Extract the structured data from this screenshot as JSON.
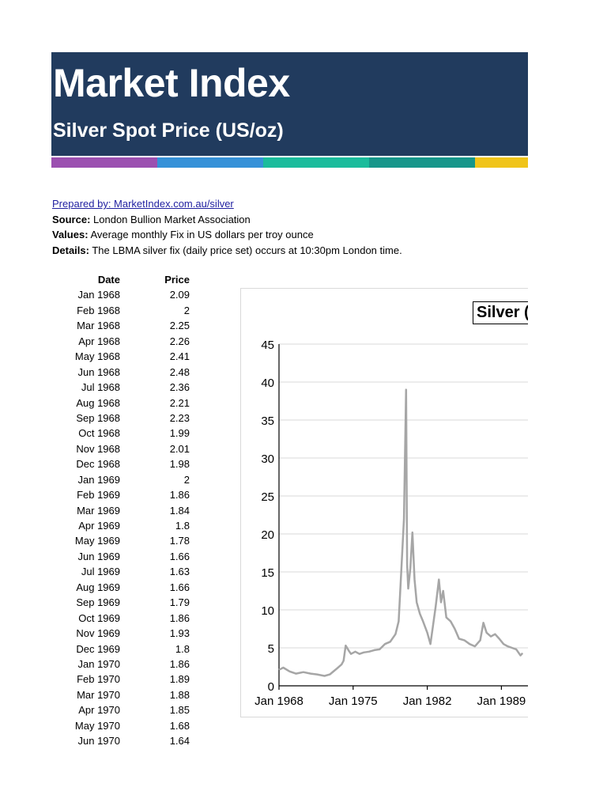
{
  "header": {
    "title": "Market Index",
    "subtitle": "Silver Spot Price (US/oz)",
    "stripe_colors": [
      "#9b4fb0",
      "#3591d8",
      "#1abc9c",
      "#16968a",
      "#f0c419"
    ]
  },
  "meta": {
    "prepared_by": "Prepared by: MarketIndex.com.au/silver",
    "source_label": "Source:",
    "source_value": "London Bullion Market Association",
    "values_label": "Values:",
    "values_value": "Average monthly Fix in US dollars per troy ounce",
    "details_label": "Details:",
    "details_value": "The LBMA silver fix (daily price set) occurs at 10:30pm London time."
  },
  "table": {
    "headers": [
      "Date",
      "Price"
    ],
    "rows": [
      [
        "Jan 1968",
        "2.09"
      ],
      [
        "Feb 1968",
        "2"
      ],
      [
        "Mar 1968",
        "2.25"
      ],
      [
        "Apr 1968",
        "2.26"
      ],
      [
        "May 1968",
        "2.41"
      ],
      [
        "Jun 1968",
        "2.48"
      ],
      [
        "Jul 1968",
        "2.36"
      ],
      [
        "Aug 1968",
        "2.21"
      ],
      [
        "Sep 1968",
        "2.23"
      ],
      [
        "Oct 1968",
        "1.99"
      ],
      [
        "Nov 1968",
        "2.01"
      ],
      [
        "Dec 1968",
        "1.98"
      ],
      [
        "Jan 1969",
        "2"
      ],
      [
        "Feb 1969",
        "1.86"
      ],
      [
        "Mar 1969",
        "1.84"
      ],
      [
        "Apr 1969",
        "1.8"
      ],
      [
        "May 1969",
        "1.78"
      ],
      [
        "Jun 1969",
        "1.66"
      ],
      [
        "Jul 1969",
        "1.63"
      ],
      [
        "Aug 1969",
        "1.66"
      ],
      [
        "Sep 1969",
        "1.79"
      ],
      [
        "Oct 1969",
        "1.86"
      ],
      [
        "Nov 1969",
        "1.93"
      ],
      [
        "Dec 1969",
        "1.8"
      ],
      [
        "Jan 1970",
        "1.86"
      ],
      [
        "Feb 1970",
        "1.89"
      ],
      [
        "Mar 1970",
        "1.88"
      ],
      [
        "Apr 1970",
        "1.85"
      ],
      [
        "May 1970",
        "1.68"
      ],
      [
        "Jun 1970",
        "1.64"
      ]
    ]
  },
  "chart_data": {
    "type": "line",
    "title": "Silver (",
    "xlabel": "",
    "ylabel": "",
    "ylim": [
      0,
      45
    ],
    "yticks": [
      0,
      5,
      10,
      15,
      20,
      25,
      30,
      35,
      40,
      45
    ],
    "xticks": [
      "Jan 1968",
      "Jan 1975",
      "Jan 1982",
      "Jan 1989"
    ],
    "grid": true,
    "legend": "none",
    "line_color": "#a6a6a6",
    "series": [
      {
        "name": "Silver",
        "x": [
          1968.0,
          1968.4,
          1969.0,
          1969.6,
          1970.3,
          1971.0,
          1971.6,
          1972.3,
          1972.8,
          1973.4,
          1973.9,
          1974.1,
          1974.3,
          1974.6,
          1974.8,
          1975.2,
          1975.6,
          1976.0,
          1976.5,
          1977.0,
          1977.5,
          1978.0,
          1978.5,
          1979.0,
          1979.3,
          1979.6,
          1979.8,
          1980.0,
          1980.1,
          1980.2,
          1980.4,
          1980.6,
          1980.8,
          1981.0,
          1981.3,
          1981.6,
          1982.0,
          1982.3,
          1982.5,
          1982.8,
          1983.1,
          1983.3,
          1983.5,
          1983.8,
          1984.2,
          1984.6,
          1985.0,
          1985.5,
          1986.0,
          1986.5,
          1987.0,
          1987.3,
          1987.6,
          1988.0,
          1988.4,
          1988.8,
          1989.2,
          1989.6,
          1990.0,
          1990.4,
          1990.8,
          1991.0
        ],
        "values": [
          2.1,
          2.4,
          1.9,
          1.6,
          1.8,
          1.6,
          1.5,
          1.3,
          1.5,
          2.2,
          2.8,
          3.3,
          5.3,
          4.6,
          4.2,
          4.5,
          4.2,
          4.4,
          4.5,
          4.7,
          4.8,
          5.5,
          5.8,
          6.8,
          8.5,
          16.5,
          22.0,
          39.0,
          16.0,
          12.8,
          15.5,
          20.2,
          14.0,
          11.0,
          9.5,
          8.5,
          7.0,
          5.5,
          7.5,
          10.5,
          14.0,
          11.0,
          12.5,
          9.0,
          8.5,
          7.5,
          6.2,
          6.0,
          5.5,
          5.2,
          6.0,
          8.3,
          7.0,
          6.5,
          6.8,
          6.2,
          5.5,
          5.2,
          5.0,
          4.8,
          4.0,
          4.3
        ]
      }
    ]
  }
}
